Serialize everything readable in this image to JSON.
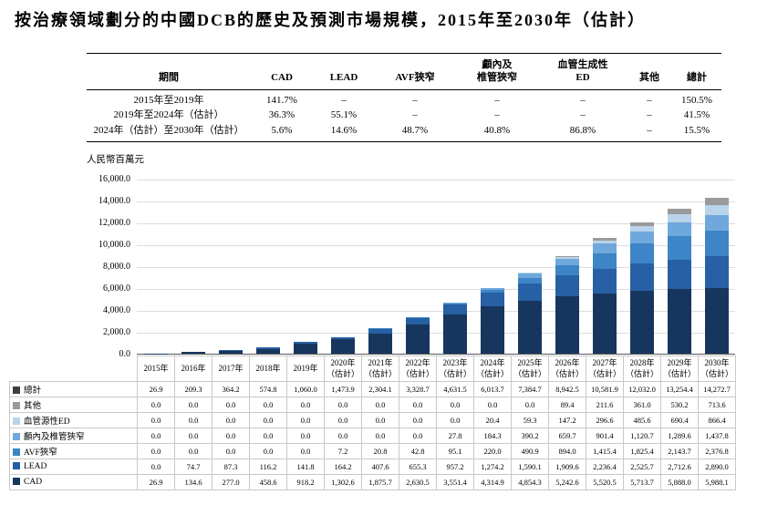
{
  "title": "按治療領域劃分的中國DCB的歷史及預測市場規模，2015年至2030年（估計）",
  "cagr_table": {
    "headers": [
      "期間",
      "CAD",
      "LEAD",
      "AVF狹窄",
      "顱內及\n椎管狹窄",
      "血管生成性\nED",
      "其他",
      "總計"
    ],
    "rows": [
      [
        "2015年至2019年",
        "141.7%",
        "–",
        "–",
        "–",
        "–",
        "–",
        "150.5%"
      ],
      [
        "2019年至2024年（估計）",
        "36.3%",
        "55.1%",
        "–",
        "–",
        "–",
        "–",
        "41.5%"
      ],
      [
        "2024年（估計）至2030年（估計）",
        "5.6%",
        "14.6%",
        "48.7%",
        "40.8%",
        "86.8%",
        "–",
        "15.5%"
      ]
    ]
  },
  "chart_data": {
    "type": "bar",
    "stacked": true,
    "title": "按治療領域劃分的中國DCB的歷史及預測市場規模，2015年至2030年（估計）",
    "unit_label": "人民幣百萬元",
    "ylim": [
      0,
      16000
    ],
    "ytick_step": 2000,
    "grid": true,
    "legend_position": "table-left",
    "categories": [
      "2015年",
      "2016年",
      "2017年",
      "2018年",
      "2019年",
      "2020年（估計）",
      "2021年（估計）",
      "2022年（估計）",
      "2023年（估計）",
      "2024年（估計）",
      "2025年（估計）",
      "2026年（估計）",
      "2027年（估計）",
      "2028年（估計）",
      "2029年（估計）",
      "2030年（估計）"
    ],
    "series": [
      {
        "name": "CAD",
        "color": "#17365d",
        "values": [
          26.9,
          134.6,
          277.0,
          458.6,
          918.2,
          1302.6,
          1875.7,
          2630.5,
          3551.4,
          4314.9,
          4854.3,
          5242.6,
          5520.5,
          5713.7,
          5888.0,
          5988.1
        ]
      },
      {
        "name": "LEAD",
        "color": "#2760a4",
        "values": [
          0.0,
          74.7,
          87.3,
          116.2,
          141.8,
          164.2,
          407.6,
          655.3,
          957.2,
          1274.2,
          1590.1,
          1909.6,
          2236.4,
          2525.7,
          2712.6,
          2890.0
        ]
      },
      {
        "name": "AVF狹窄",
        "color": "#3d85c6",
        "values": [
          0.0,
          0.0,
          0.0,
          0.0,
          0.0,
          7.2,
          20.8,
          42.8,
          95.1,
          220.0,
          490.9,
          894.0,
          1415.4,
          1825.4,
          2143.7,
          2376.8
        ]
      },
      {
        "name": "顱內及椎管狹窄",
        "color": "#6fa8dc",
        "values": [
          0.0,
          0.0,
          0.0,
          0.0,
          0.0,
          0.0,
          0.0,
          0.0,
          27.8,
          184.3,
          390.2,
          659.7,
          901.4,
          1120.7,
          1289.6,
          1437.8
        ]
      },
      {
        "name": "血管源性ED",
        "color": "#b8d3ea",
        "values": [
          0.0,
          0.0,
          0.0,
          0.0,
          0.0,
          0.0,
          0.0,
          0.0,
          0.0,
          20.4,
          59.3,
          147.2,
          296.6,
          485.6,
          690.4,
          866.4
        ]
      },
      {
        "name": "其他",
        "color": "#9a9a9a",
        "values": [
          0.0,
          0.0,
          0.0,
          0.0,
          0.0,
          0.0,
          0.0,
          0.0,
          0.0,
          0.0,
          0.0,
          89.4,
          211.6,
          361.0,
          530.2,
          713.6
        ]
      }
    ],
    "totals": {
      "label": "總計",
      "color": "#3f3f3f",
      "values": [
        26.9,
        209.3,
        364.2,
        574.8,
        1060.0,
        1473.9,
        2304.1,
        3328.7,
        4631.5,
        6013.7,
        7384.7,
        8942.5,
        10581.9,
        12032.0,
        13254.4,
        14272.7
      ]
    }
  }
}
